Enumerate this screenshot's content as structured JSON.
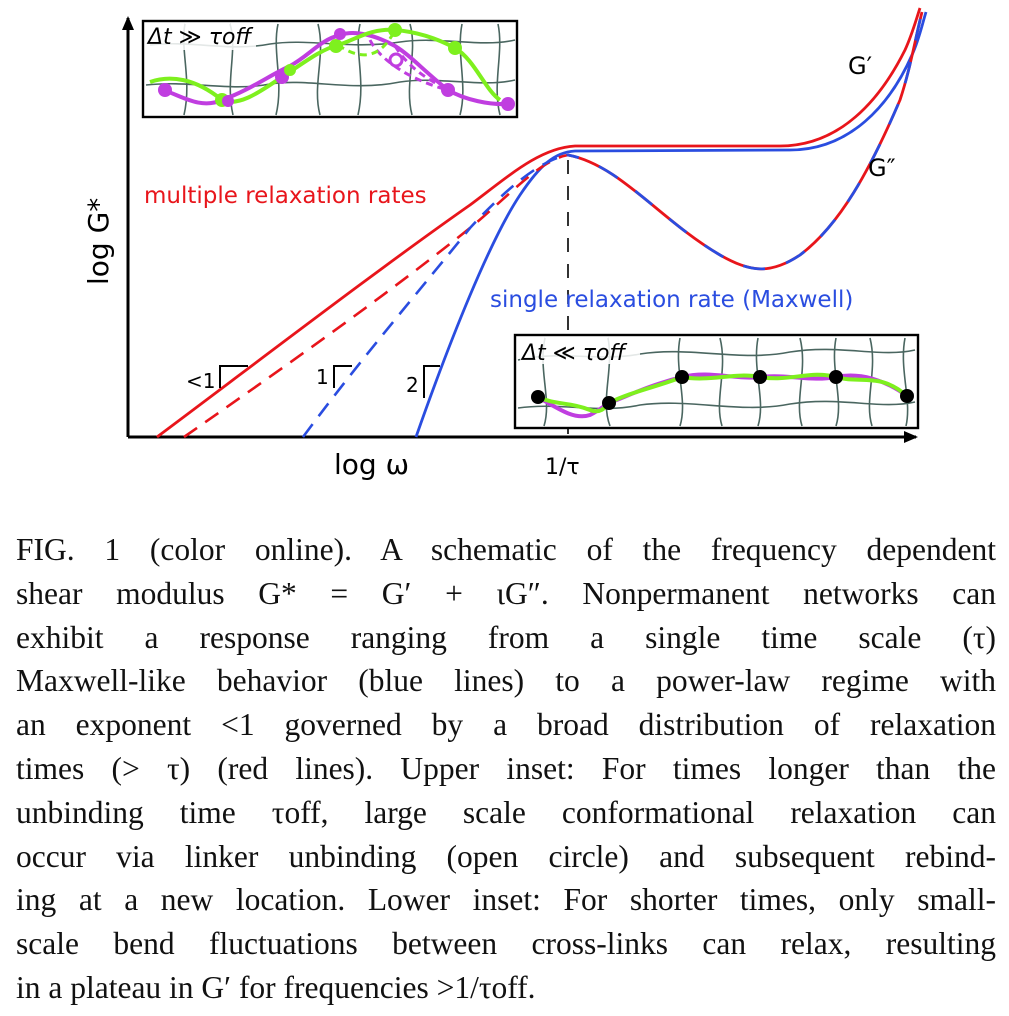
{
  "figure": {
    "y_axis_label": "log G*",
    "x_axis_label": "log ω",
    "x_tick_label": "1/τ",
    "curve_labels": {
      "g_prime": "G′",
      "g_double_prime": "G″",
      "multiple": "multiple relaxation rates",
      "single": "single relaxation rate (Maxwell)"
    },
    "slope_labels": [
      "<1",
      "1",
      "2"
    ],
    "upper_inset_label": "Δt ≫ τoff",
    "lower_inset_label": "Δt ≪ τoff",
    "colors": {
      "red": "#e8151b",
      "blue": "#2a4de0",
      "green": "#7ef01e",
      "purple": "#c03ee0",
      "network": "#4a6660"
    }
  },
  "caption": {
    "lines": [
      "FIG. 1 (color online).    A schematic of the frequency dependent",
      "shear modulus G* = G′ + ιG″. Nonpermanent networks can",
      "exhibit a response ranging from a single time scale (τ)",
      "Maxwell-like behavior (blue lines) to a power-law regime with",
      "an exponent <1 governed by a broad distribution of relaxation",
      "times (> τ) (red lines). Upper inset: For times longer than the",
      "unbinding time τoff, large scale conformational relaxation can",
      "occur via linker unbinding (open circle) and subsequent rebind-",
      "ing at a new location. Lower inset: For shorter times, only small-",
      "scale bend fluctuations between cross-links can relax, resulting",
      "in a plateau in G′ for frequencies >1/τoff."
    ]
  }
}
